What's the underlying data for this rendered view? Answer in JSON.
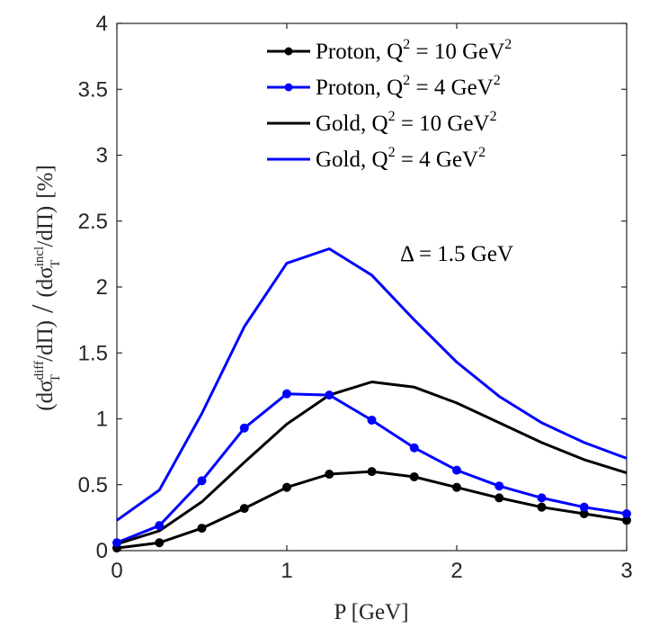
{
  "chart_data": {
    "type": "line",
    "xlabel": "P [GeV]",
    "ylabel": "(dσ_T^diff/dΠ) / (dσ_T^incl/dΠ) [%]",
    "ylabel_parts": {
      "left_base": "(dσ",
      "left_sub": "T",
      "left_sup": "diff",
      "left_tail": "/dΠ)",
      "slash": "/",
      "right_base": "(dσ",
      "right_sub": "T",
      "right_sup": "incl",
      "right_tail": "/dΠ)",
      "unit": "[%]"
    },
    "xlim": [
      0,
      3
    ],
    "ylim": [
      0,
      4
    ],
    "xticks": [
      0,
      1,
      2,
      3
    ],
    "xtick_labels": [
      "0",
      "1",
      "2",
      "3"
    ],
    "yticks": [
      0,
      0.5,
      1,
      1.5,
      2,
      2.5,
      3,
      3.5,
      4
    ],
    "ytick_labels": [
      "0",
      "0.5",
      "1",
      "1.5",
      "2",
      "2.5",
      "3",
      "3.5",
      "4"
    ],
    "grid": false,
    "legend_position": "top-right",
    "annotation": "Δ = 1.5 GeV",
    "x": [
      0,
      0.25,
      0.5,
      0.75,
      1.0,
      1.25,
      1.5,
      1.75,
      2.0,
      2.25,
      2.5,
      2.75,
      3.0
    ],
    "series": [
      {
        "name": "Proton, Q² = 10 GeV²",
        "name_parts": {
          "base": "Proton,  Q",
          "sup": "2",
          "mid": " = 10 GeV",
          "sup2": "2"
        },
        "color": "#000000",
        "markers": true,
        "values": [
          0.02,
          0.06,
          0.17,
          0.32,
          0.48,
          0.58,
          0.6,
          0.56,
          0.48,
          0.4,
          0.33,
          0.28,
          0.23
        ]
      },
      {
        "name": "Proton, Q² = 4 GeV²",
        "name_parts": {
          "base": "Proton,  Q",
          "sup": "2",
          "mid": " = 4 GeV",
          "sup2": "2"
        },
        "color": "#0000ff",
        "markers": true,
        "values": [
          0.06,
          0.19,
          0.53,
          0.93,
          1.19,
          1.18,
          0.99,
          0.78,
          0.61,
          0.49,
          0.4,
          0.33,
          0.28
        ]
      },
      {
        "name": "Gold, Q² = 10 GeV²",
        "name_parts": {
          "base": "Gold,  Q",
          "sup": "2",
          "mid": " = 10 GeV",
          "sup2": "2"
        },
        "color": "#000000",
        "markers": false,
        "values": [
          0.05,
          0.15,
          0.37,
          0.67,
          0.96,
          1.18,
          1.28,
          1.24,
          1.12,
          0.97,
          0.82,
          0.69,
          0.59
        ]
      },
      {
        "name": "Gold, Q² = 4 GeV²",
        "name_parts": {
          "base": "Gold,  Q",
          "sup": "2",
          "mid": " = 4 GeV",
          "sup2": "2"
        },
        "color": "#0000ff",
        "markers": false,
        "values": [
          0.23,
          0.46,
          1.04,
          1.7,
          2.18,
          2.29,
          2.09,
          1.75,
          1.43,
          1.17,
          0.97,
          0.82,
          0.7
        ]
      }
    ]
  }
}
